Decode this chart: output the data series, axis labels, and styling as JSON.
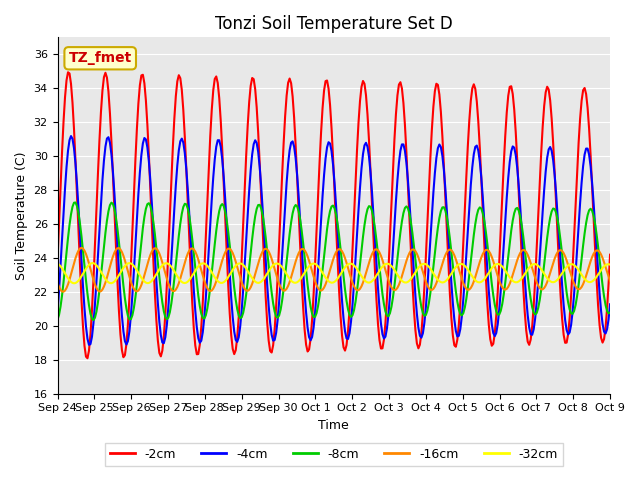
{
  "title": "Tonzi Soil Temperature Set D",
  "xlabel": "Time",
  "ylabel": "Soil Temperature (C)",
  "ylim": [
    16,
    37
  ],
  "yticks": [
    16,
    18,
    20,
    22,
    24,
    26,
    28,
    30,
    32,
    34,
    36
  ],
  "background_color": "#e8e8e8",
  "legend_label": "TZ_fmet",
  "legend_box_color": "#ffffcc",
  "legend_box_edge": "#ccaa00",
  "series": [
    {
      "label": "-2cm",
      "color": "#ff0000",
      "lw": 1.5
    },
    {
      "label": "-4cm",
      "color": "#0000ff",
      "lw": 1.5
    },
    {
      "label": "-8cm",
      "color": "#00cc00",
      "lw": 1.5
    },
    {
      "label": "-16cm",
      "color": "#ff8800",
      "lw": 1.5
    },
    {
      "label": "-32cm",
      "color": "#ffff00",
      "lw": 1.5
    }
  ],
  "x_tick_labels": [
    "Sep 24",
    "Sep 25",
    "Sep 26",
    "Sep 27",
    "Sep 28",
    "Sep 29",
    "Sep 30",
    "Oct 1",
    "Oct 2",
    "Oct 3",
    "Oct 4",
    "Oct 5",
    "Oct 6",
    "Oct 7",
    "Oct 8",
    "Oct 9"
  ],
  "x_tick_positions": [
    0,
    1,
    2,
    3,
    4,
    5,
    6,
    7,
    8,
    9,
    10,
    11,
    12,
    13,
    14,
    15
  ],
  "n_points": 370
}
